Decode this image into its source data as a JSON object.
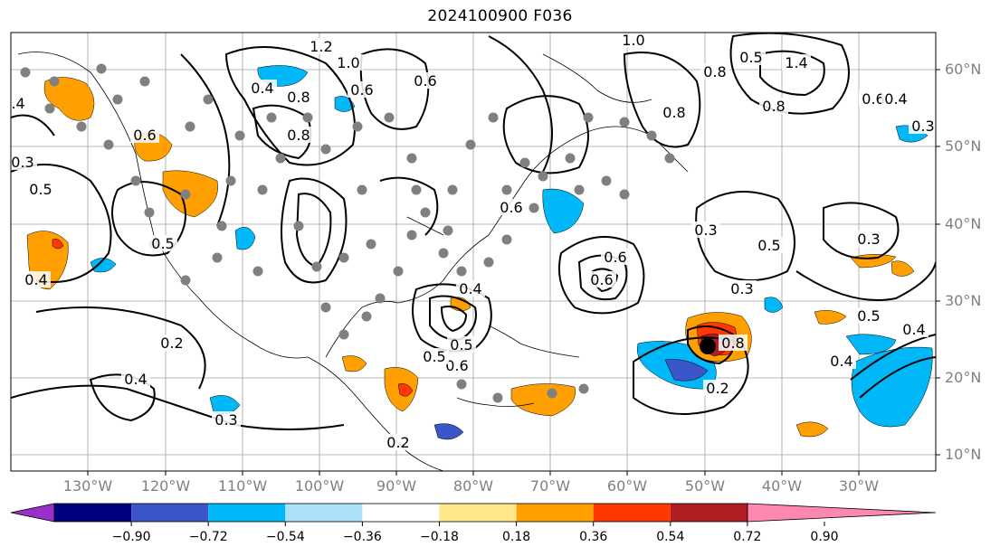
{
  "title": "2024100900 F036",
  "lat_labels": [
    "60°N",
    "50°N",
    "40°N",
    "30°N",
    "20°N",
    "10°N"
  ],
  "lon_labels": [
    "130°W",
    "120°W",
    "110°W",
    "100°W",
    "90°W",
    "80°W",
    "70°W",
    "60°W",
    "50°W",
    "40°W",
    "30°W"
  ],
  "colorbar": {
    "ticks": [
      "−0.90",
      "−0.72",
      "−0.54",
      "−0.36",
      "−0.18",
      "0.18",
      "0.36",
      "0.54",
      "0.72",
      "0.90"
    ],
    "colors": [
      "#9a30c8",
      "#000080",
      "#3a56c8",
      "#00b8f8",
      "#aee0fa",
      "#ffffff",
      "#ffe88a",
      "#ffa000",
      "#ff3800",
      "#b01e22",
      "#ff88b0"
    ]
  },
  "contour_labels": [
    "1.2",
    "1.0",
    "0.8",
    "0.6",
    "0.5",
    "0.4",
    "0.3",
    "0.2",
    "1.4"
  ],
  "map_style": {
    "contour_color": "#000000",
    "dot_color": "#808080",
    "grid_color": "#a0a0a0"
  }
}
